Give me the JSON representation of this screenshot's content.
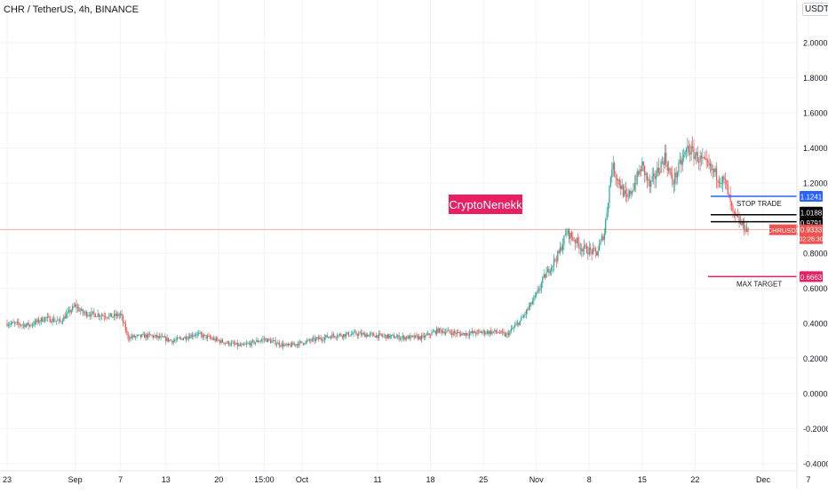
{
  "header": {
    "title": "CHR / TetherUS, 4h, BINANCE",
    "currency_button": "USDT"
  },
  "watermark": "CryptoNenekk",
  "colors": {
    "up": "#26a69a",
    "down": "#ef5350",
    "grid": "#f0f3fa",
    "axis_text": "#131722",
    "stop_line": "#2962ff",
    "target_line": "#e91e63",
    "price_tag": "#ef5350",
    "watermark_bg": "#e91e63"
  },
  "price_labels": {
    "stop": "1.1241",
    "level_1": "1.0188",
    "level_2": "0.9791",
    "current_symbol": "CHRUSDT",
    "current": "0.9333",
    "countdown": "02:26:30",
    "target": "0.6663"
  },
  "annotations": {
    "stop_trade": "STOP TRADE",
    "max_target": "MAX TARGET"
  },
  "chart_data": {
    "type": "candlestick",
    "title": "CHR / TetherUS, 4h, BINANCE",
    "ylim": [
      -0.44,
      2.2
    ],
    "y_ticks": [
      "2.0000",
      "1.8000",
      "1.6000",
      "1.4000",
      "1.2000",
      "0.8000",
      "0.6000",
      "0.4000",
      "0.2000",
      "0.0000",
      "-0.2000",
      "-0.4000"
    ],
    "x_ticks": [
      "23",
      "Sep",
      "7",
      "13",
      "20",
      "15:00",
      "Oct",
      "11",
      "18",
      "25",
      "Nov",
      "8",
      "15",
      "22",
      "Dec",
      "7"
    ],
    "anchors": [
      [
        "Aug 23",
        0.4
      ],
      [
        "Aug 26",
        0.39
      ],
      [
        "Aug 28",
        0.43
      ],
      [
        "Aug 30",
        0.41
      ],
      [
        "Sep 1",
        0.5
      ],
      [
        "Sep 2",
        0.46
      ],
      [
        "Sep 4",
        0.45
      ],
      [
        "Sep 6",
        0.44
      ],
      [
        "Sep 7",
        0.45
      ],
      [
        "Sep 8",
        0.32
      ],
      [
        "Sep 11",
        0.33
      ],
      [
        "Sep 14",
        0.3
      ],
      [
        "Sep 17",
        0.34
      ],
      [
        "Sep 20",
        0.3
      ],
      [
        "Sep 23",
        0.27
      ],
      [
        "Sep 26",
        0.31
      ],
      [
        "Sep 29",
        0.27
      ],
      [
        "Oct 2",
        0.3
      ],
      [
        "Oct 5",
        0.33
      ],
      [
        "Oct 8",
        0.34
      ],
      [
        "Oct 11",
        0.33
      ],
      [
        "Oct 14",
        0.32
      ],
      [
        "Oct 17",
        0.32
      ],
      [
        "Oct 19",
        0.36
      ],
      [
        "Oct 22",
        0.34
      ],
      [
        "Oct 25",
        0.35
      ],
      [
        "Oct 27",
        0.35
      ],
      [
        "Oct 28",
        0.33
      ],
      [
        "Oct 30",
        0.42
      ],
      [
        "Nov 1",
        0.56
      ],
      [
        "Nov 2",
        0.66
      ],
      [
        "Nov 4",
        0.8
      ],
      [
        "Nov 5",
        0.92
      ],
      [
        "Nov 6",
        0.88
      ],
      [
        "Nov 7",
        0.83
      ],
      [
        "Nov 9",
        0.8
      ],
      [
        "Nov 10",
        0.92
      ],
      [
        "Nov 11",
        1.3
      ],
      [
        "Nov 12",
        1.2
      ],
      [
        "Nov 13",
        1.1
      ],
      [
        "Nov 15",
        1.3
      ],
      [
        "Nov 16",
        1.18
      ],
      [
        "Nov 18",
        1.35
      ],
      [
        "Nov 19",
        1.2
      ],
      [
        "Nov 21",
        1.4
      ],
      [
        "Nov 23",
        1.32
      ],
      [
        "Nov 24",
        1.28
      ],
      [
        "Nov 26",
        1.2
      ],
      [
        "Nov 27",
        1.02
      ],
      [
        "Nov 28",
        0.97
      ],
      [
        "Nov 29",
        0.93
      ]
    ],
    "lines": [
      {
        "label": "STOP TRADE",
        "value": 1.1241
      },
      {
        "value": 1.0188
      },
      {
        "value": 0.9791
      },
      {
        "value": 0.9333
      },
      {
        "label": "MAX TARGET",
        "value": 0.6663
      }
    ]
  }
}
